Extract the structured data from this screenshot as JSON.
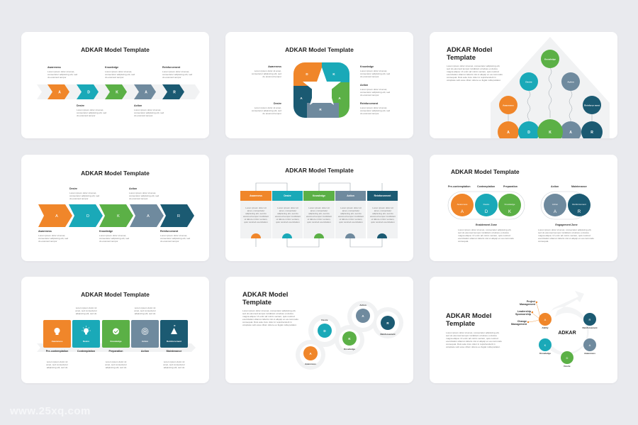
{
  "colors": {
    "orange": "#f0862a",
    "teal": "#1aa9b8",
    "green": "#5bb046",
    "slate": "#6f8a9e",
    "navy": "#1b5a72",
    "background": "#e9eaee"
  },
  "title": "ADKAR Model Template",
  "title_line1": "ADKAR Model",
  "title_line2": "Template",
  "lorem_short": "Lorem ipsum dolor sit amet, consectetur adipiscing elit, sed do eiusmod tempor",
  "lorem_tiny": "Lorem ipsum dolor sit amet, sed consectetur adipiscing elit, sed do",
  "lorem_col": "Lorem ipsum dolor sit amet, consectetur adipiscing elit, sed do eiusmod tempor incididunt ut labore minim veniam, quis nostrud exercitation",
  "lorem_long": "Lorem ipsum dolor sit amet, consectetur adipiscing elit, sed do eiusmod tempor incididunt ut labore et dolore magna aliqua. Ut enim ad minim veniam, quis nostrud exercitation ullamco laboris nisi ut aliquip ex ea commodo consequat. Duis aute irure dolor in reprehenderit in voluptate velit esse cillum dolore eu fugiat nulla pariatur.",
  "lorem_zone": "Lorem ipsum dolor sit amet, consectetur adipiscing elit, sed do eiusmod tempor incididunt ut labore et dolore magna aliqua. Ut enim ad minim veniam, quis nostrud exercitation ullamco laboris nisi ut aliquip ex ea commodo consequat.",
  "letters": [
    "A",
    "D",
    "K",
    "A",
    "R"
  ],
  "stages": [
    "Awareness",
    "Desire",
    "Knowledge",
    "Action",
    "Reinforcement"
  ],
  "stage_reinforcement_split": "Reinforce ment",
  "phases": [
    "Pre-contemplation",
    "Contemplation",
    "Preparation",
    "Action",
    "Maintenance"
  ],
  "zones": [
    "Enablement Zone",
    "Engagement Zone"
  ],
  "slide9": {
    "center": "ADKAR",
    "ability": "Ability",
    "factors": [
      "Project Management",
      "Leadership Sponsorship",
      "Change Management"
    ]
  },
  "watermark": "www.25xq.com"
}
